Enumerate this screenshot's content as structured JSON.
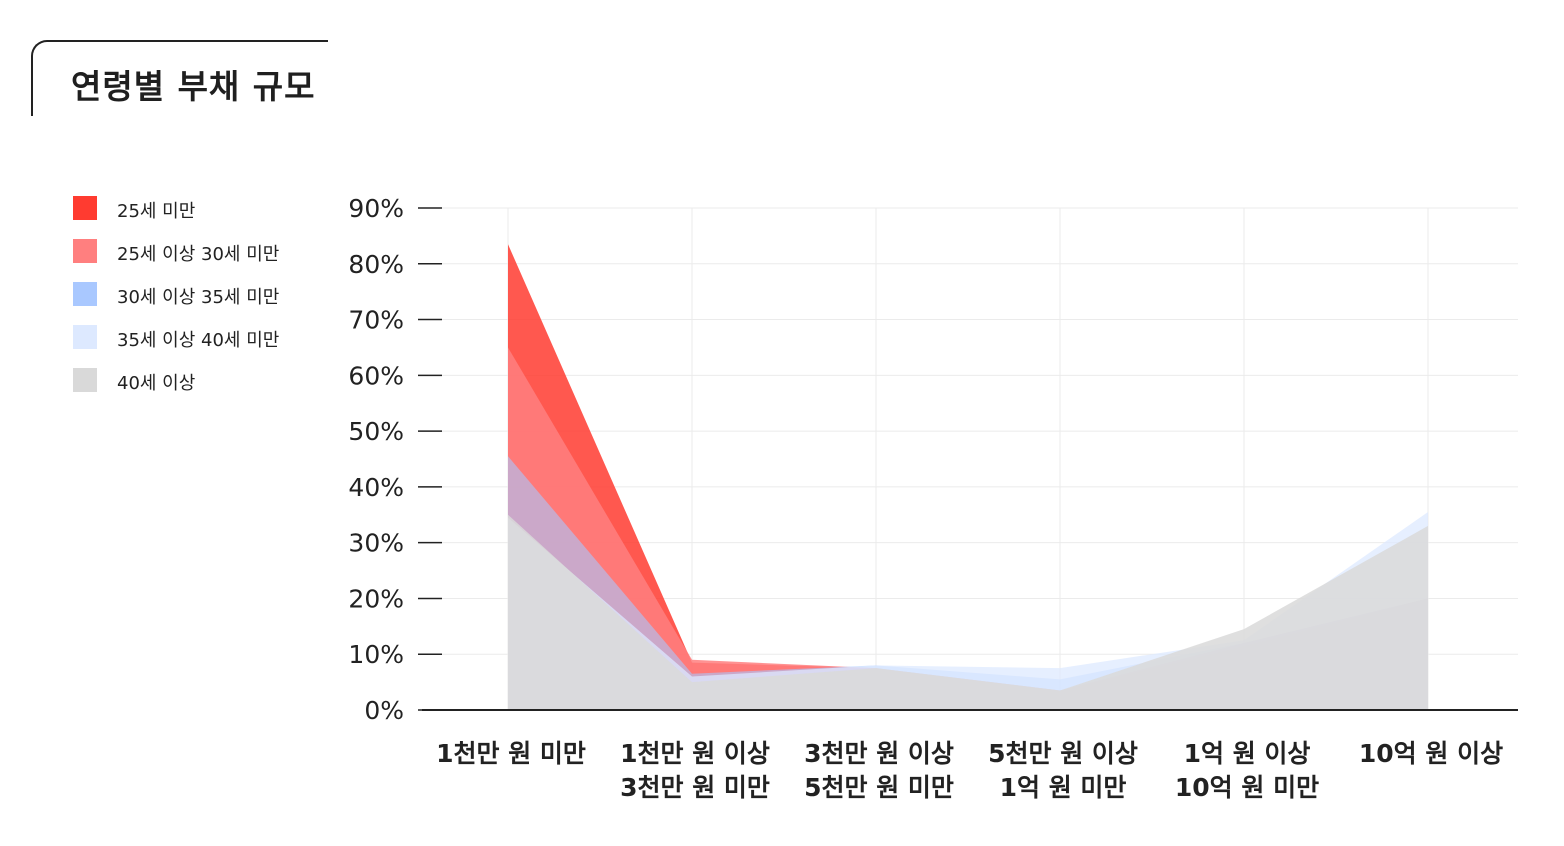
{
  "title": "연령별 부채 규모",
  "chart_data": {
    "type": "area",
    "title": "연령별 부채 규모",
    "categories": [
      [
        "1천만 원 미만"
      ],
      [
        "1천만 원 이상",
        "3천만 원 미만"
      ],
      [
        "3천만 원 이상",
        "5천만 원 미만"
      ],
      [
        "5천만 원 이상",
        "1억 원 미만"
      ],
      [
        "1억 원 이상",
        "10억 원 미만"
      ],
      [
        "10억 원 이상"
      ]
    ],
    "y_ticks": [
      "0%",
      "10%",
      "20%",
      "30%",
      "40%",
      "50%",
      "60%",
      "70%",
      "80%",
      "90%"
    ],
    "ylim": [
      0,
      90
    ],
    "y_unit": "%",
    "grid": true,
    "legend_position": "left",
    "series": [
      {
        "name": "25세 미만",
        "color": "#ff3b30",
        "values": [
          83.5,
          8.5,
          7.5,
          3.5,
          11.5,
          20.0
        ]
      },
      {
        "name": "25세 이상 30세 미만",
        "color": "#ff7f7f",
        "values": [
          65.0,
          9.0,
          7.5,
          3.5,
          12.0,
          20.0
        ]
      },
      {
        "name": "30세 이상 35세 미만",
        "color": "#a9c8ff",
        "values": [
          45.5,
          6.5,
          8.0,
          5.5,
          12.0,
          20.0
        ]
      },
      {
        "name": "35세 이상 40세 미만",
        "color": "#dde9ff",
        "values": [
          34.5,
          6.0,
          8.0,
          7.5,
          12.5,
          35.5
        ]
      },
      {
        "name": "40세 이상",
        "color": "#d9d9d9",
        "values": [
          35.0,
          5.0,
          7.5,
          3.5,
          14.5,
          33.0
        ]
      }
    ]
  }
}
